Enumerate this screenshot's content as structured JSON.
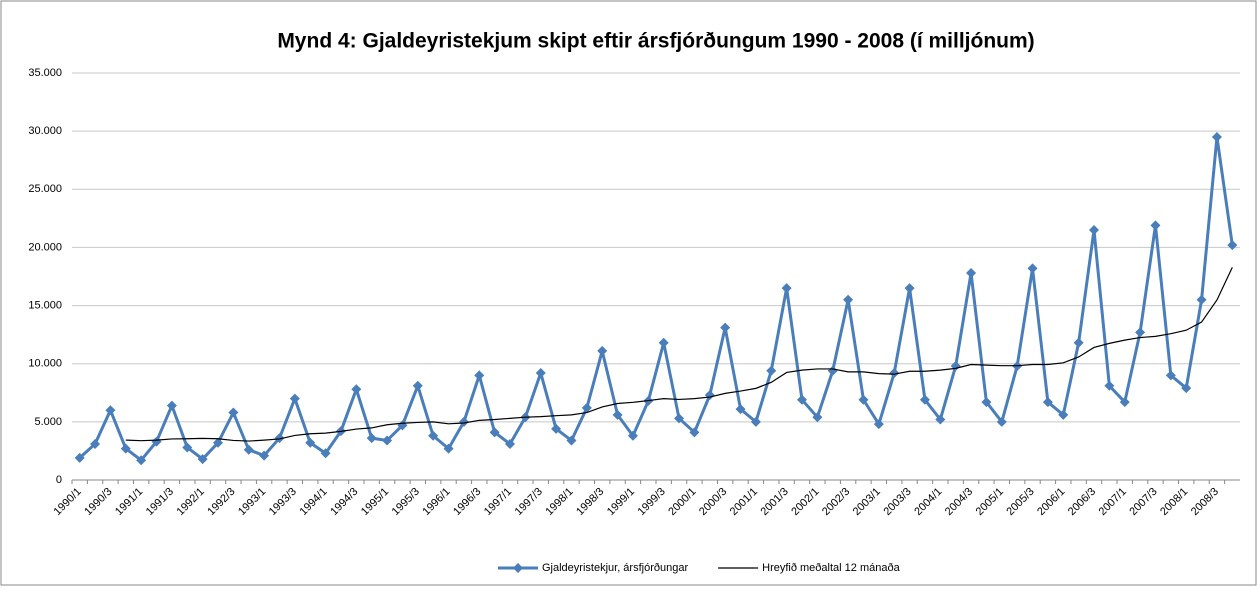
{
  "chart_data": {
    "type": "line",
    "title": "Mynd 4: Gjaldeyristekjum skipt eftir ársfjórðungum 1990 - 2008 (í milljónum)",
    "categories": [
      "1990/1",
      null,
      "1990/3",
      null,
      "1991/1",
      null,
      "1991/3",
      null,
      "1992/1",
      null,
      "1992/3",
      null,
      "1993/1",
      null,
      "1993/3",
      null,
      "1994/1",
      null,
      "1994/3",
      null,
      "1995/1",
      null,
      "1995/3",
      null,
      "1996/1",
      null,
      "1996/3",
      null,
      "1997/1",
      null,
      "1997/3",
      null,
      "1998/1",
      null,
      "1998/3",
      null,
      "1999/1",
      null,
      "1999/3",
      null,
      "2000/1",
      null,
      "2000/3",
      null,
      "2001/1",
      null,
      "2001/3",
      null,
      "2002/1",
      null,
      "2002/3",
      null,
      "2003/1",
      null,
      "2003/3",
      null,
      "2004/1",
      null,
      "2004/3",
      null,
      "2005/1",
      null,
      "2005/3",
      null,
      "2006/1",
      null,
      "2006/3",
      null,
      "2007/1",
      null,
      "2007/3",
      null,
      "2008/1",
      null,
      "2008/3",
      null
    ],
    "series": [
      {
        "name": "Gjaldeyristekjur, ársfjórðungar",
        "color": "#4a7ebb",
        "marker": "diamond",
        "values": [
          1900,
          3100,
          6000,
          2700,
          1700,
          3300,
          6400,
          2800,
          1800,
          3200,
          5800,
          2600,
          2100,
          3600,
          7000,
          3200,
          2300,
          4200,
          7800,
          3600,
          3400,
          4700,
          8100,
          3800,
          2700,
          5000,
          9000,
          4100,
          3100,
          5400,
          9200,
          4400,
          3400,
          6200,
          11100,
          5600,
          3800,
          6800,
          11800,
          5300,
          4100,
          7300,
          13100,
          6100,
          5000,
          9400,
          16500,
          6900,
          5400,
          9400,
          15500,
          6900,
          4800,
          9200,
          16500,
          6900,
          5200,
          9800,
          17800,
          6700,
          5000,
          9800,
          18200,
          6700,
          5600,
          11800,
          21500,
          8100,
          6700,
          12700,
          21900,
          9000,
          7900,
          15500,
          29500,
          20200
        ]
      },
      {
        "name": "Hreyfið meðaltal 12 mánaða",
        "color": "#000000",
        "marker": "none",
        "values": [
          null,
          null,
          null,
          3430,
          3380,
          3430,
          3530,
          3550,
          3580,
          3550,
          3400,
          3350,
          3430,
          3530,
          3830,
          3980,
          4030,
          4180,
          4380,
          4480,
          4750,
          4880,
          4950,
          5000,
          4830,
          4900,
          5130,
          5200,
          5300,
          5400,
          5450,
          5530,
          5600,
          5800,
          6280,
          6580,
          6680,
          6830,
          7000,
          6930,
          7000,
          7130,
          7450,
          7650,
          7880,
          8400,
          9250,
          9450,
          9550,
          9550,
          9300,
          9300,
          9150,
          9100,
          9350,
          9350,
          9450,
          9600,
          9930,
          9880,
          9830,
          9830,
          9930,
          9930,
          10080,
          10580,
          11400,
          11750,
          12030,
          12250,
          12350,
          12580,
          12880,
          13580,
          15480,
          18280
        ]
      }
    ],
    "ylim": [
      0,
      35000
    ],
    "yticks": [
      0,
      {
        "value": 5000,
        "label": "5.000"
      },
      {
        "value": 10000,
        "label": "10.000"
      },
      {
        "value": 15000,
        "label": "15.000"
      },
      {
        "value": 20000,
        "label": "20.000"
      },
      {
        "value": 25000,
        "label": "25.000"
      },
      {
        "value": 30000,
        "label": "30.000"
      },
      {
        "value": 35000,
        "label": "35.000"
      }
    ],
    "grid": true,
    "legend": "bottom"
  }
}
